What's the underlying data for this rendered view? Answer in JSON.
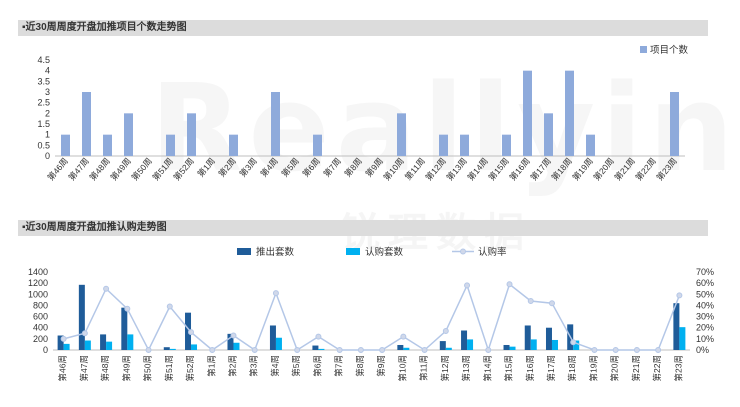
{
  "watermark": {
    "main": "Reallyinfo",
    "sub": "锐理数据"
  },
  "chart_data": [
    {
      "type": "bar",
      "title": "▪近30周周度开盘加推项目个数走势图",
      "categories": [
        "第46周",
        "第47周",
        "第48周",
        "第49周",
        "第50周",
        "第51周",
        "第52周",
        "第1周",
        "第2周",
        "第3周",
        "第4周",
        "第5周",
        "第6周",
        "第7周",
        "第8周",
        "第9周",
        "第10周",
        "第11周",
        "第12周",
        "第13周",
        "第14周",
        "第15周",
        "第16周",
        "第17周",
        "第18周",
        "第19周",
        "第20周",
        "第21周",
        "第22周",
        "第23周"
      ],
      "series": [
        {
          "name": "项目个数",
          "color": "#8eaadb",
          "values": [
            1,
            3,
            1,
            2,
            0,
            1,
            2,
            0,
            1,
            0,
            3,
            0,
            1,
            0,
            0,
            0,
            2,
            0,
            1,
            1,
            0,
            1,
            4,
            2,
            4,
            1,
            0,
            0,
            0,
            3
          ]
        }
      ],
      "yticks": [
        "0",
        "0.5",
        "1",
        "1.5",
        "2",
        "2.5",
        "3",
        "3.5",
        "4",
        "4.5"
      ],
      "ylim": [
        0,
        4.5
      ],
      "legend_position": "top-right",
      "grid": false
    },
    {
      "type": "bar",
      "title": "▪近30周周度开盘加推认购走势图",
      "categories": [
        "第46周",
        "第47周",
        "第48周",
        "第49周",
        "第50周",
        "第51周",
        "第52周",
        "第1周",
        "第2周",
        "第3周",
        "第4周",
        "第5周",
        "第6周",
        "第7周",
        "第8周",
        "第9周",
        "第10周",
        "第11周",
        "第12周",
        "第13周",
        "第14周",
        "第15周",
        "第16周",
        "第17周",
        "第18周",
        "第19周",
        "第20周",
        "第21周",
        "第22周",
        "第23周"
      ],
      "series": [
        {
          "name": "推出套数",
          "color": "#1f5c99",
          "axis": "left",
          "values": [
            260,
            1170,
            280,
            760,
            0,
            50,
            670,
            0,
            290,
            0,
            440,
            0,
            80,
            0,
            0,
            0,
            90,
            0,
            160,
            350,
            0,
            90,
            440,
            400,
            460,
            0,
            0,
            0,
            0,
            840
          ]
        },
        {
          "name": "认购套数",
          "color": "#00b0f0",
          "axis": "left",
          "values": [
            110,
            170,
            150,
            280,
            0,
            20,
            100,
            0,
            130,
            0,
            220,
            0,
            20,
            0,
            0,
            0,
            40,
            0,
            40,
            190,
            0,
            60,
            190,
            180,
            170,
            0,
            0,
            0,
            0,
            410
          ]
        },
        {
          "name": "认购率",
          "color": "#b4c7e7",
          "axis": "right",
          "line": true,
          "values": [
            10,
            15,
            55,
            37,
            0,
            39,
            16,
            0,
            13,
            0,
            51,
            0,
            12,
            0,
            0,
            0,
            12,
            0,
            17,
            58,
            0,
            59,
            44,
            42,
            7,
            0,
            0,
            0,
            0,
            49
          ]
        }
      ],
      "yticks_left": [
        "0",
        "200",
        "400",
        "600",
        "800",
        "1000",
        "1200",
        "1400"
      ],
      "ylim_left": [
        0,
        1400
      ],
      "yticks_right": [
        "0%",
        "10%",
        "20%",
        "30%",
        "40%",
        "50%",
        "60%",
        "70%"
      ],
      "ylim_right": [
        0,
        70
      ],
      "legend_position": "top",
      "grid": false
    }
  ]
}
